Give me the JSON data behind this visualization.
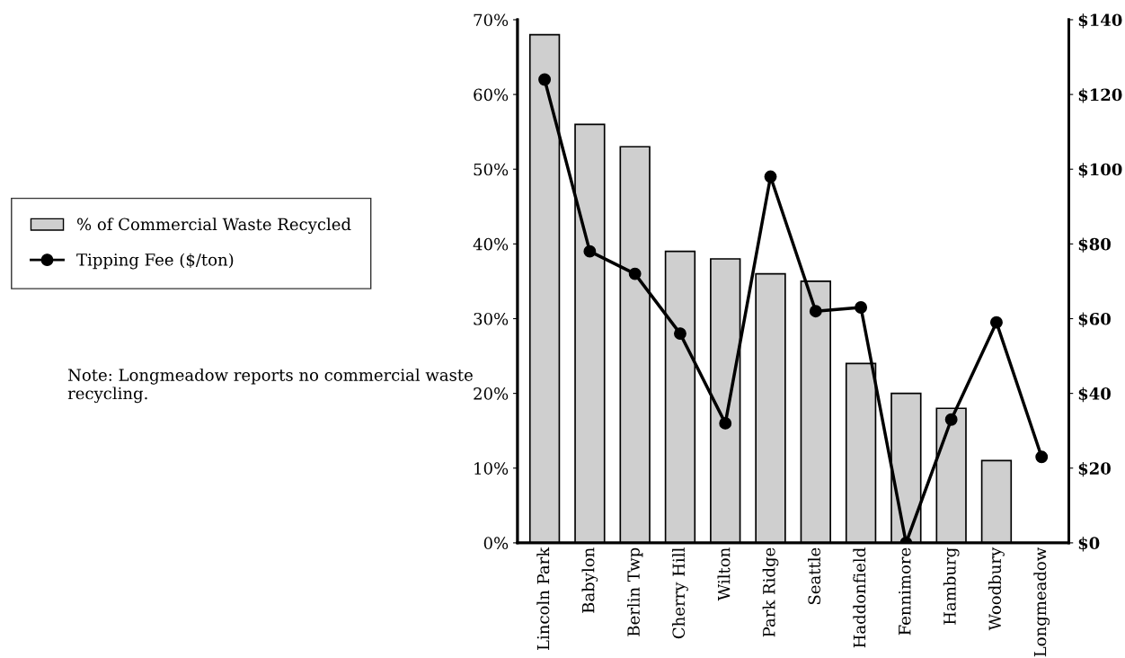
{
  "chart_data": {
    "type": "bar",
    "categories": [
      "Lincoln Park",
      "Babylon",
      "Berlin Twp",
      "Cherry Hill",
      "Wilton",
      "Park Ridge",
      "Seattle",
      "Haddonfield",
      "Fennimore",
      "Hamburg",
      "Woodbury",
      "Longmeadow"
    ],
    "series": [
      {
        "name": "% of Commercial Waste Recycled",
        "color": "#cfcfcf",
        "values": [
          68,
          56,
          53,
          39,
          38,
          36,
          35,
          24,
          20,
          18,
          11,
          null
        ]
      },
      {
        "name": "Tipping Fee ($/ton)",
        "type": "line",
        "axis": "y2",
        "color": "#000000",
        "values": [
          124,
          78,
          72,
          56,
          32,
          98,
          62,
          63,
          0,
          33,
          59,
          23
        ]
      }
    ],
    "ylim": [
      0,
      70
    ],
    "yticks": [
      {
        "value": 0,
        "label": "0%"
      },
      {
        "value": 10,
        "label": "10%"
      },
      {
        "value": 20,
        "label": "20%"
      },
      {
        "value": 30,
        "label": "30%"
      },
      {
        "value": 40,
        "label": "40%"
      },
      {
        "value": 50,
        "label": "50%"
      },
      {
        "value": 60,
        "label": "60%"
      },
      {
        "value": 70,
        "label": "70%"
      }
    ],
    "y2lim": [
      0,
      140
    ],
    "y2ticks": [
      {
        "value": 0,
        "label": "$0"
      },
      {
        "value": 20,
        "label": "$20"
      },
      {
        "value": 40,
        "label": "$40"
      },
      {
        "value": 60,
        "label": "$60"
      },
      {
        "value": 80,
        "label": "$80"
      },
      {
        "value": 100,
        "label": "$100"
      },
      {
        "value": 120,
        "label": "$120"
      },
      {
        "value": 140,
        "label": "$140"
      }
    ],
    "marker": "circle",
    "line_style": "solid",
    "grid": false,
    "legend": "left",
    "annotations": [
      "Note: Longmeadow reports no commercial waste recycling."
    ]
  }
}
